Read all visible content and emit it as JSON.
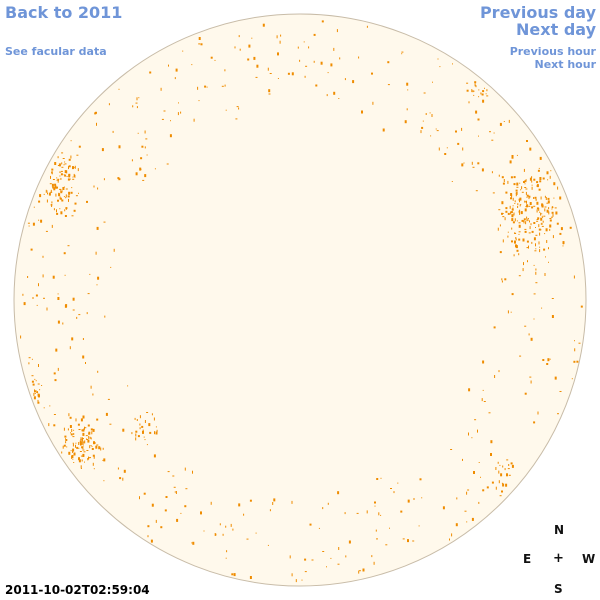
{
  "nav": {
    "back": "Back to 2011",
    "facular": "See facular data",
    "prev_day": "Previous day",
    "next_day": "Next day",
    "prev_hour": "Previous hour",
    "next_hour": "Next hour"
  },
  "compass": {
    "north": "N",
    "east": "E",
    "center": "+",
    "west": "W",
    "south": "S"
  },
  "timestamp": "2011-10-02T02:59:04",
  "colors": {
    "link": "#6f95d8",
    "disk_fill": "#fff9ec",
    "disk_edge": "#c8bca8",
    "facula": "#ef8c00"
  }
}
